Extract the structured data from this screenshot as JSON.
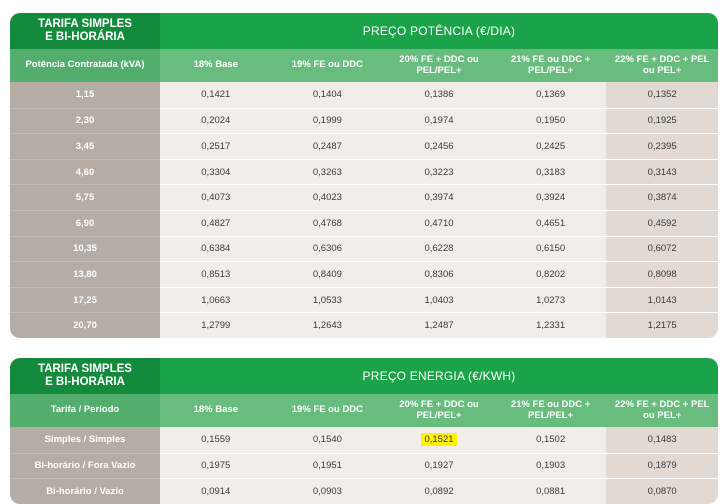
{
  "table1": {
    "title_line1": "TARIFA SIMPLES",
    "title_line2": "E BI-HORÁRIA",
    "span_header": "PREÇO POTÊNCIA (€/DIA)",
    "row_label_header": "Potência Contratada (kVA)",
    "columns": [
      "18% Base",
      "19% FE ou DDC",
      "20% FE + DDC ou PEL/PEL+",
      "21% FE ou DDC + PEL/PEL+",
      "22% FE + DDC + PEL ou PEL+"
    ],
    "rows": [
      {
        "label": "1,15",
        "values": [
          "0,1421",
          "0,1404",
          "0,1386",
          "0,1369",
          "0,1352"
        ]
      },
      {
        "label": "2,30",
        "values": [
          "0,2024",
          "0,1999",
          "0,1974",
          "0,1950",
          "0,1925"
        ]
      },
      {
        "label": "3,45",
        "values": [
          "0,2517",
          "0,2487",
          "0,2456",
          "0,2425",
          "0,2395"
        ]
      },
      {
        "label": "4,60",
        "values": [
          "0,3304",
          "0,3263",
          "0,3223",
          "0,3183",
          "0,3143"
        ]
      },
      {
        "label": "5,75",
        "values": [
          "0,4073",
          "0,4023",
          "0,3974",
          "0,3924",
          "0,3874"
        ]
      },
      {
        "label": "6,90",
        "values": [
          "0,4827",
          "0,4768",
          "0,4710",
          "0,4651",
          "0,4592"
        ]
      },
      {
        "label": "10,35",
        "values": [
          "0,6384",
          "0,6306",
          "0,6228",
          "0,6150",
          "0,6072"
        ]
      },
      {
        "label": "13,80",
        "values": [
          "0,8513",
          "0,8409",
          "0,8306",
          "0,8202",
          "0,8098"
        ]
      },
      {
        "label": "17,25",
        "values": [
          "1,0663",
          "1,0533",
          "1,0403",
          "1,0273",
          "1,0143"
        ]
      },
      {
        "label": "20,70",
        "values": [
          "1,2799",
          "1,2643",
          "1,2487",
          "1,2331",
          "1,2175"
        ]
      }
    ]
  },
  "table2": {
    "title_line1": "TARIFA SIMPLES",
    "title_line2": "E BI-HORÁRIA",
    "span_header": "PREÇO ENERGIA (€/KWH)",
    "row_label_header": "Tarifa / Período",
    "columns": [
      "18% Base",
      "19% FE ou DDC",
      "20% FE + DDC ou PEL/PEL+",
      "21% FE ou DDC + PEL/PEL+",
      "22% FE + DDC + PEL ou PEL+"
    ],
    "rows": [
      {
        "label": "Simples / Simples",
        "values": [
          "0,1559",
          "0,1540",
          "0,1521",
          "0,1502",
          "0,1483"
        ]
      },
      {
        "label": "Bi-horário / Fora Vazio",
        "values": [
          "0,1975",
          "0,1951",
          "0,1927",
          "0,1903",
          "0,1879"
        ]
      },
      {
        "label": "Bi-horário / Vazio",
        "values": [
          "0,0914",
          "0,0903",
          "0,0892",
          "0,0881",
          "0,0870"
        ]
      }
    ],
    "highlighted_cell": "0,1521"
  },
  "colors": {
    "title_green": "#138a3c",
    "header_green": "#1ba34a",
    "subheader_green": "#68bd7e",
    "label_column": "#b5aca6",
    "cell": "#f1ede8",
    "last_column": "#e1d9d2",
    "highlight": "#fff200"
  }
}
